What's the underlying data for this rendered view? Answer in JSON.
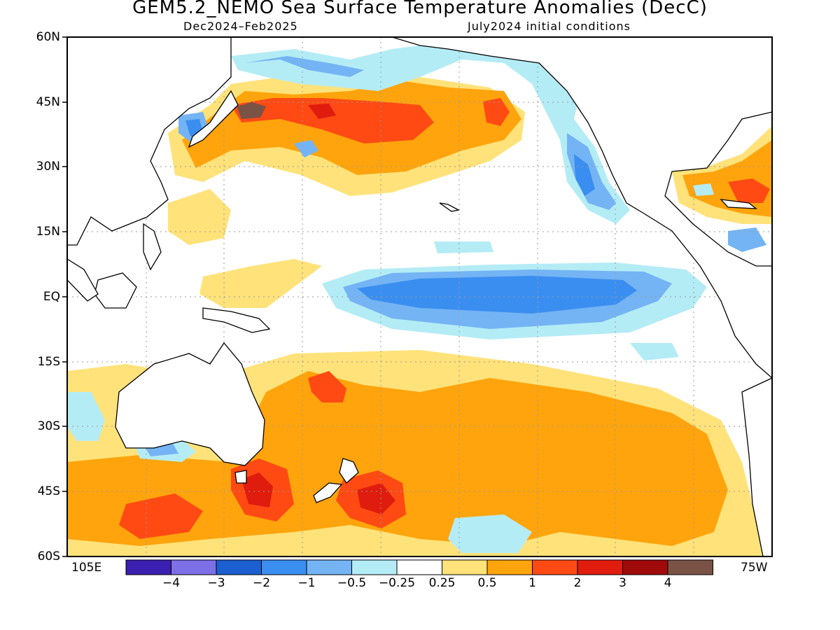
{
  "title": "GEM5.2_NEMO Sea Surface Temperature Anomalies (DecC)",
  "subtitle_left": "Dec2024–Feb2025",
  "subtitle_right": "July2024 initial conditions",
  "lat_labels": [
    "60N",
    "45N",
    "30N",
    "15N",
    "EQ",
    "15S",
    "30S",
    "45S",
    "60S"
  ],
  "lon_labels": {
    "left": "105E",
    "right": "75W"
  },
  "colorbar": {
    "labels": [
      "−4",
      "−3",
      "−2",
      "−1",
      "−0.5",
      "−0.25",
      "0.25",
      "0.5",
      "1",
      "2",
      "3",
      "4"
    ],
    "colors": [
      "#3a1fb0",
      "#7d6fe6",
      "#1b5fd0",
      "#3a8ef0",
      "#74b4f4",
      "#b4ecf6",
      "#ffffff",
      "#ffe27a",
      "#ffa40c",
      "#ff4a14",
      "#e01c0e",
      "#a00a0a",
      "#7a5246"
    ]
  },
  "chart_data": {
    "type": "heatmap",
    "title": "GEM5.2_NEMO Sea Surface Temperature Anomalies (DecC)",
    "period": "Dec2024–Feb2025",
    "initial_conditions": "July2024 initial conditions",
    "units": "DecC",
    "lat_range": [
      "60S",
      "60N"
    ],
    "lon_range": [
      "105E",
      "75W"
    ],
    "levels": [
      -4,
      -3,
      -2,
      -1,
      -0.5,
      -0.25,
      0.25,
      0.5,
      1,
      2,
      3,
      4
    ]
  }
}
